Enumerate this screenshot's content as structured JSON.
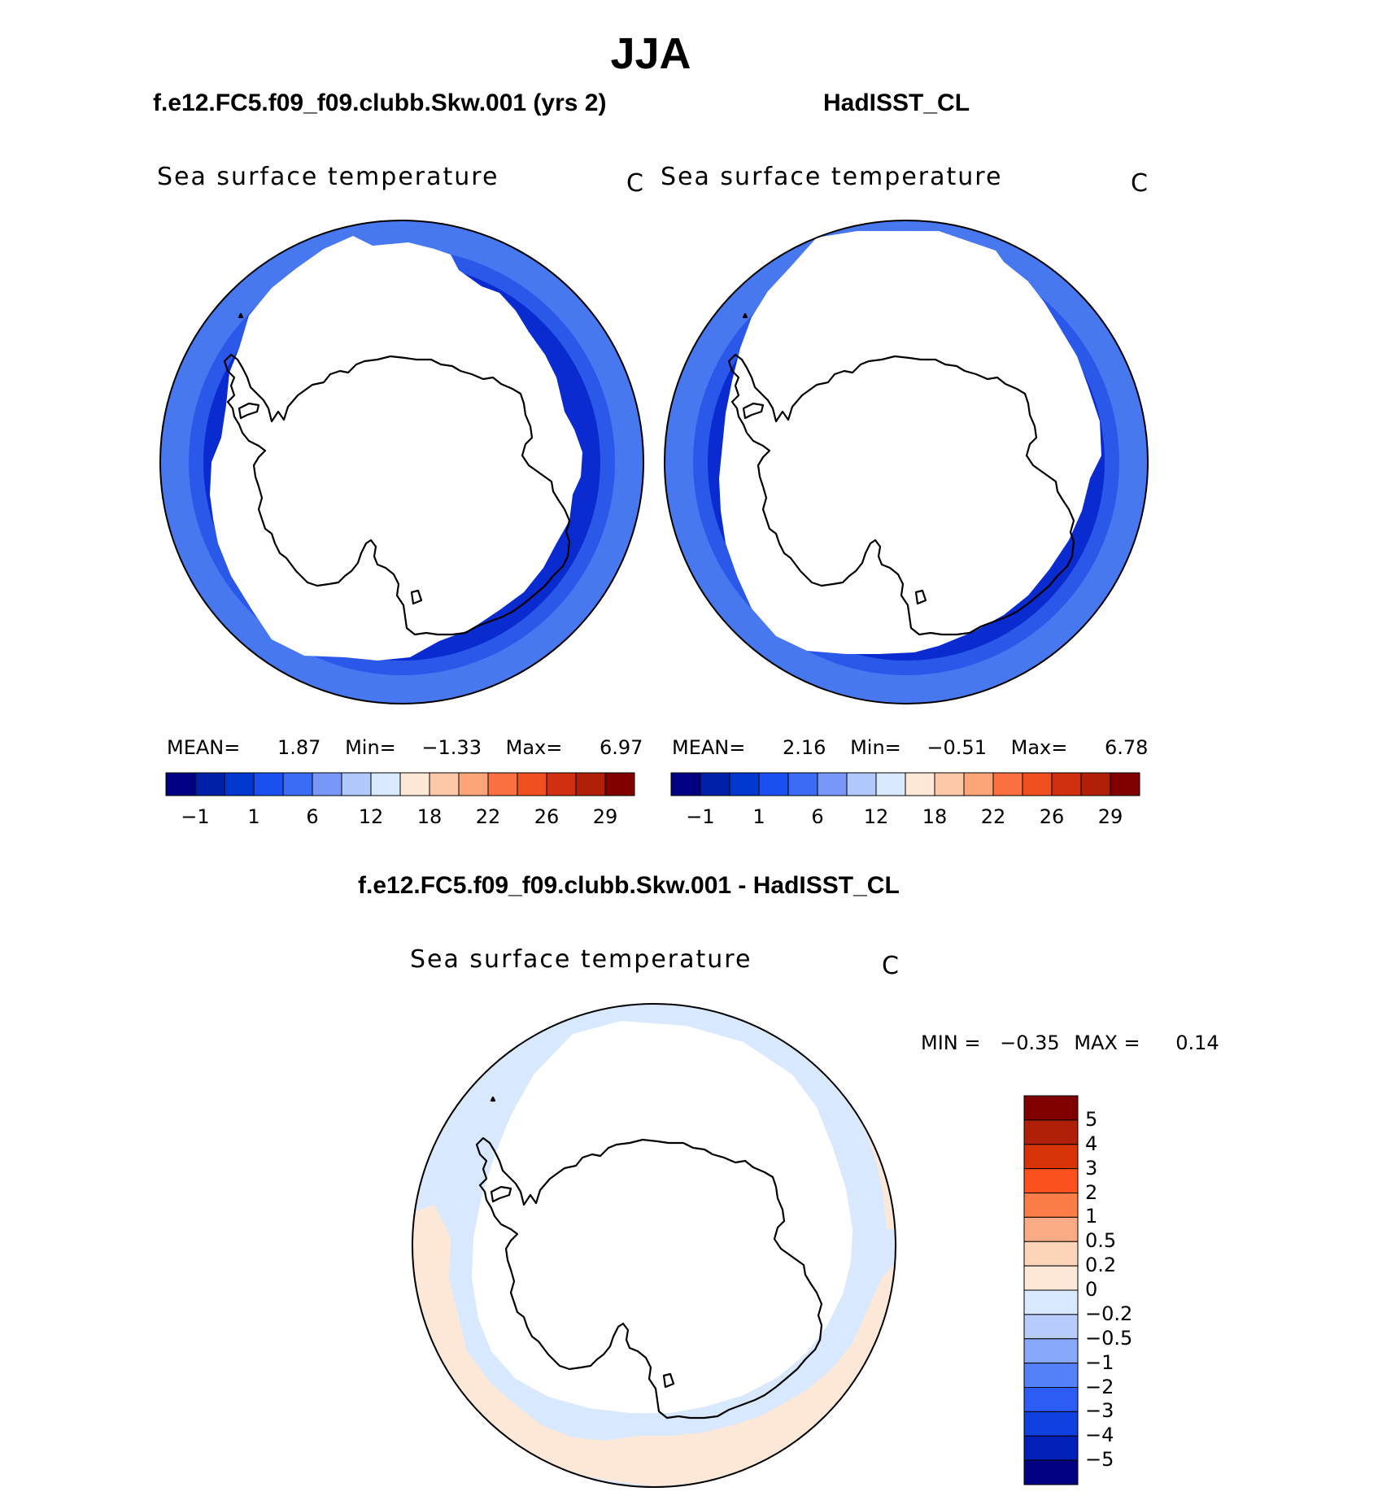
{
  "title": "JJA",
  "panel_titles": {
    "model": "f.e12.FC5.f09_f09.clubb.Skw.001 (yrs 2)",
    "obs": "HadISST_CL",
    "diff": "f.e12.FC5.f09_f09.clubb.Skw.001 - HadISST_CL"
  },
  "colors": {
    "abs_scale": [
      "#000080",
      "#0020a8",
      "#0038d0",
      "#1a50f0",
      "#3a6cf5",
      "#7898f8",
      "#b0c8fc",
      "#d8e8fe",
      "#fde8d8",
      "#fcc8a8",
      "#fba478",
      "#fa7040",
      "#f05020",
      "#d03010",
      "#b02008",
      "#800000"
    ],
    "diff_scale_top_to_bottom": [
      "#800000",
      "#b02008",
      "#d83208",
      "#fc5020",
      "#fc7c48",
      "#fcac84",
      "#fcd4b8",
      "#fde8d8",
      "#d8e8fe",
      "#b8ccfc",
      "#88a8fc",
      "#5480f8",
      "#2c5cf4",
      "#1040e0",
      "#0020b8",
      "#000080"
    ],
    "ocean_deep": "#0a2bd0",
    "ocean_mid": "#2a58e8",
    "ocean_light": "#4878f0",
    "diff_warm": "#fde8d8",
    "diff_cool": "#d8e8fe"
  },
  "chart_data": [
    {
      "type": "heatmap",
      "projection": "south-polar-stereographic",
      "title": "f.e12.FC5.f09_f09.clubb.Skw.001 (yrs 2)",
      "variable": "Sea surface temperature",
      "units": "C",
      "stats": {
        "mean_label": "MEAN=",
        "mean": "1.87",
        "min_label": "Min=",
        "min": "−1.33",
        "max_label": "Max=",
        "max": "6.97"
      },
      "colorbar_ticks": [
        "−1",
        "1",
        "6",
        "12",
        "18",
        "22",
        "26",
        "29"
      ],
      "colorbar_levels": 16
    },
    {
      "type": "heatmap",
      "projection": "south-polar-stereographic",
      "title": "HadISST_CL",
      "variable": "Sea surface temperature",
      "units": "C",
      "stats": {
        "mean_label": "MEAN=",
        "mean": "2.16",
        "min_label": "Min=",
        "min": "−0.51",
        "max_label": "Max=",
        "max": "6.78"
      },
      "colorbar_ticks": [
        "−1",
        "1",
        "6",
        "12",
        "18",
        "22",
        "26",
        "29"
      ],
      "colorbar_levels": 16
    },
    {
      "type": "heatmap",
      "projection": "south-polar-stereographic",
      "title": "f.e12.FC5.f09_f09.clubb.Skw.001 - HadISST_CL",
      "variable": "Sea surface temperature",
      "units": "C",
      "stats": {
        "min_label": "MIN =",
        "min": "−0.35",
        "max_label": "MAX =",
        "max": "0.14"
      },
      "colorbar_ticks": [
        "5",
        "4",
        "3",
        "2",
        "1",
        "0.5",
        "0.2",
        "0",
        "−0.2",
        "−0.5",
        "−1",
        "−2",
        "−3",
        "−4",
        "−5"
      ],
      "colorbar_levels": 16
    }
  ]
}
